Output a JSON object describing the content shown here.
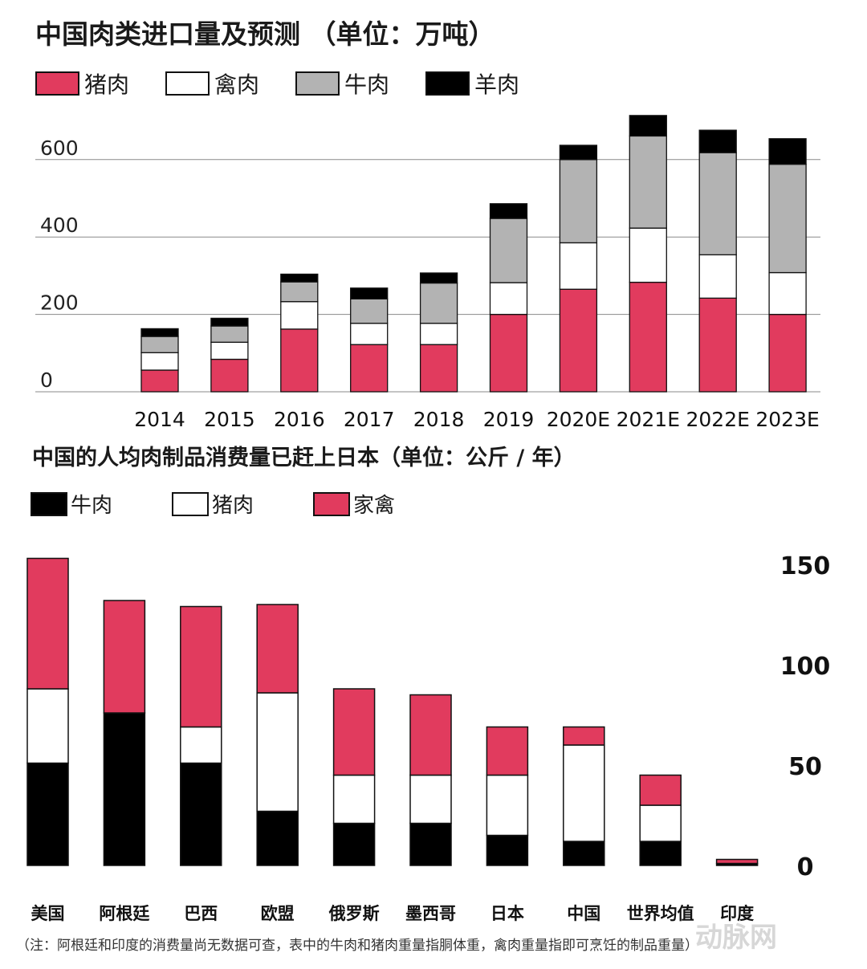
{
  "chart_data": [
    {
      "type": "bar",
      "stacked": true,
      "title": "中国肉类进口量及预测 （单位：万吨）",
      "categories": [
        "2014",
        "2015",
        "2016",
        "2017",
        "2018",
        "2019",
        "2020E",
        "2021E",
        "2022E",
        "2023E"
      ],
      "series": [
        {
          "name": "猪肉",
          "color": "#e13b5e",
          "values": [
            56,
            84,
            162,
            122,
            122,
            200,
            265,
            283,
            242,
            200
          ]
        },
        {
          "name": "禽肉",
          "color": "#ffffff",
          "values": [
            45,
            44,
            71,
            55,
            55,
            82,
            120,
            140,
            112,
            108
          ]
        },
        {
          "name": "牛肉",
          "color": "#b3b3b3",
          "values": [
            42,
            42,
            51,
            63,
            104,
            166,
            215,
            238,
            264,
            280
          ]
        },
        {
          "name": "羊肉",
          "color": "#000000",
          "values": [
            20,
            20,
            20,
            28,
            26,
            38,
            37,
            53,
            58,
            66
          ]
        }
      ],
      "ylim": [
        0,
        720
      ],
      "yticks": [
        0,
        200,
        400,
        600
      ],
      "grid": true,
      "legend": "top"
    },
    {
      "type": "bar",
      "stacked": true,
      "title": "中国的人均肉制品消费量已赶上日本（单位：公斤 / 年）",
      "categories": [
        "美国",
        "阿根廷",
        "巴西",
        "欧盟",
        "俄罗斯",
        "墨西哥",
        "日本",
        "中国",
        "世界均值",
        "印度"
      ],
      "series": [
        {
          "name": "牛肉",
          "color": "#000000",
          "values": [
            51,
            76,
            51,
            27,
            21,
            21,
            15,
            12,
            12,
            1
          ]
        },
        {
          "name": "猪肉",
          "color": "#ffffff",
          "values": [
            37,
            0,
            18,
            59,
            24,
            24,
            30,
            48,
            18,
            0
          ]
        },
        {
          "name": "家禽",
          "color": "#e13b5e",
          "values": [
            65,
            56,
            60,
            44,
            43,
            40,
            24,
            9,
            15,
            2
          ]
        }
      ],
      "ylim": [
        0,
        155
      ],
      "yticks": [
        0,
        50,
        100,
        150
      ],
      "grid": false,
      "legend": "top"
    }
  ],
  "legend1": [
    "猪肉",
    "禽肉",
    "牛肉",
    "羊肉"
  ],
  "legend2": [
    "牛肉",
    "猪肉",
    "家禽"
  ],
  "footnote": "（注：阿根廷和印度的消费量尚无数据可查，表中的牛肉和猪肉重量指胴体重，禽肉重量指即可烹饪的制品重量）",
  "watermark": "动脉网"
}
